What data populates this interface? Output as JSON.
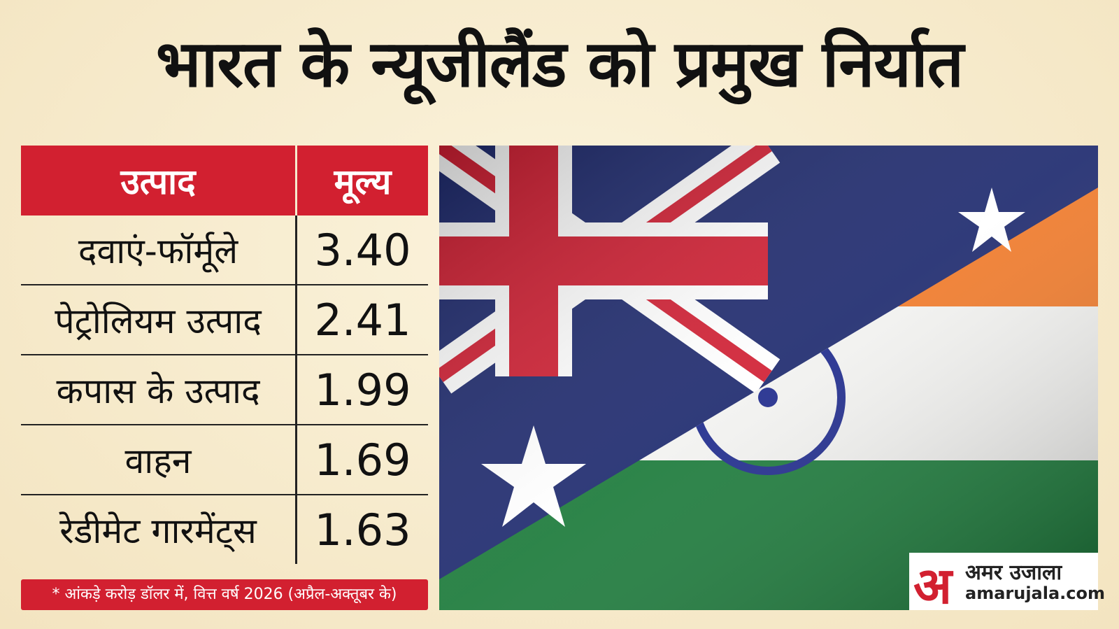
{
  "header": {
    "title": "भारत के न्यूजीलैंड को प्रमुख निर्यात"
  },
  "table": {
    "header": [
      "उत्पाद",
      "मूल्य"
    ],
    "rows": [
      [
        "दवाएं-फॉर्मूले",
        "3.40"
      ],
      [
        "पेट्रोलियम उत्पाद",
        "2.41"
      ],
      [
        "कपास के उत्पाद",
        "1.99"
      ],
      [
        "वाहन",
        "1.69"
      ],
      [
        "रेडीमेट गारमेंट्स",
        "1.63"
      ]
    ]
  },
  "footnote": "* आंकड़े करोड़ डॉलर में, वित्त वर्ष 2026 (अप्रैल-अक्तूबर के)",
  "logo": {
    "mark": "अ",
    "name": "अमर उजाला",
    "url": "amarujala.com"
  }
}
